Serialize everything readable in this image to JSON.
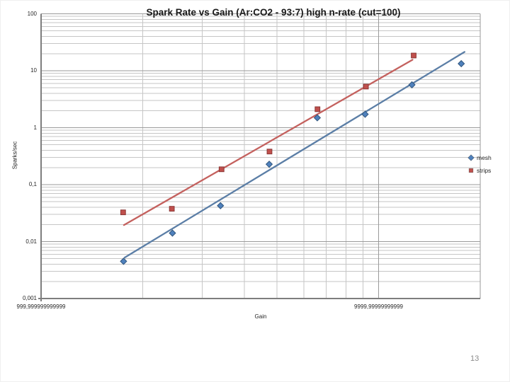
{
  "slide": {
    "page_number": "13"
  },
  "chart_data": {
    "type": "scatter",
    "title": "Spark Rate vs Gain (Ar:CO2 - 93:7) high n-rate (cut=100)",
    "xlabel": "Gain",
    "ylabel": "Sparks/sec",
    "x_scale": "log",
    "y_scale": "log",
    "xlim": [
      1000,
      20000
    ],
    "ylim": [
      0.001,
      100
    ],
    "grid": {
      "minor_color": "#c6c6c6",
      "major_color": "#9a9a9a",
      "axis_color": "#7e7e7e",
      "minor_on": true
    },
    "x_ticks": {
      "values": [
        1000,
        10000
      ],
      "labels": [
        "999,999999999999",
        "9999,99999999999"
      ]
    },
    "y_ticks": {
      "values": [
        100,
        10,
        1,
        0.1,
        0.01,
        0.001
      ],
      "labels": [
        "100",
        "10",
        "1",
        "0,1",
        "0,01",
        "0,001"
      ]
    },
    "legend_position": "right",
    "series": [
      {
        "name": "mesh",
        "marker": "diamond",
        "color": "#4F81BD",
        "edge_color": "#31567d",
        "points": [
          [
            1755,
            0.0045
          ],
          [
            2450,
            0.0141
          ],
          [
            3400,
            0.0427
          ],
          [
            4740,
            0.228
          ],
          [
            6580,
            1.49
          ],
          [
            9120,
            1.72
          ],
          [
            12550,
            5.66
          ],
          [
            17570,
            13.3
          ]
        ],
        "trendline": {
          "color": "#5b7ea6",
          "from": [
            1768,
            0.00524
          ],
          "to": [
            17970,
            21.4
          ]
        }
      },
      {
        "name": "strips",
        "marker": "square",
        "color": "#C0504D",
        "edge_color": "#8c3836",
        "points": [
          [
            1750,
            0.0326
          ],
          [
            2440,
            0.0377
          ],
          [
            3425,
            0.186
          ],
          [
            4750,
            0.381
          ],
          [
            6590,
            2.11
          ],
          [
            9170,
            5.27
          ],
          [
            12700,
            18.5
          ]
        ],
        "trendline": {
          "color": "#c4615e",
          "from": [
            1760,
            0.0195
          ],
          "to": [
            12600,
            15.6
          ]
        }
      }
    ]
  }
}
